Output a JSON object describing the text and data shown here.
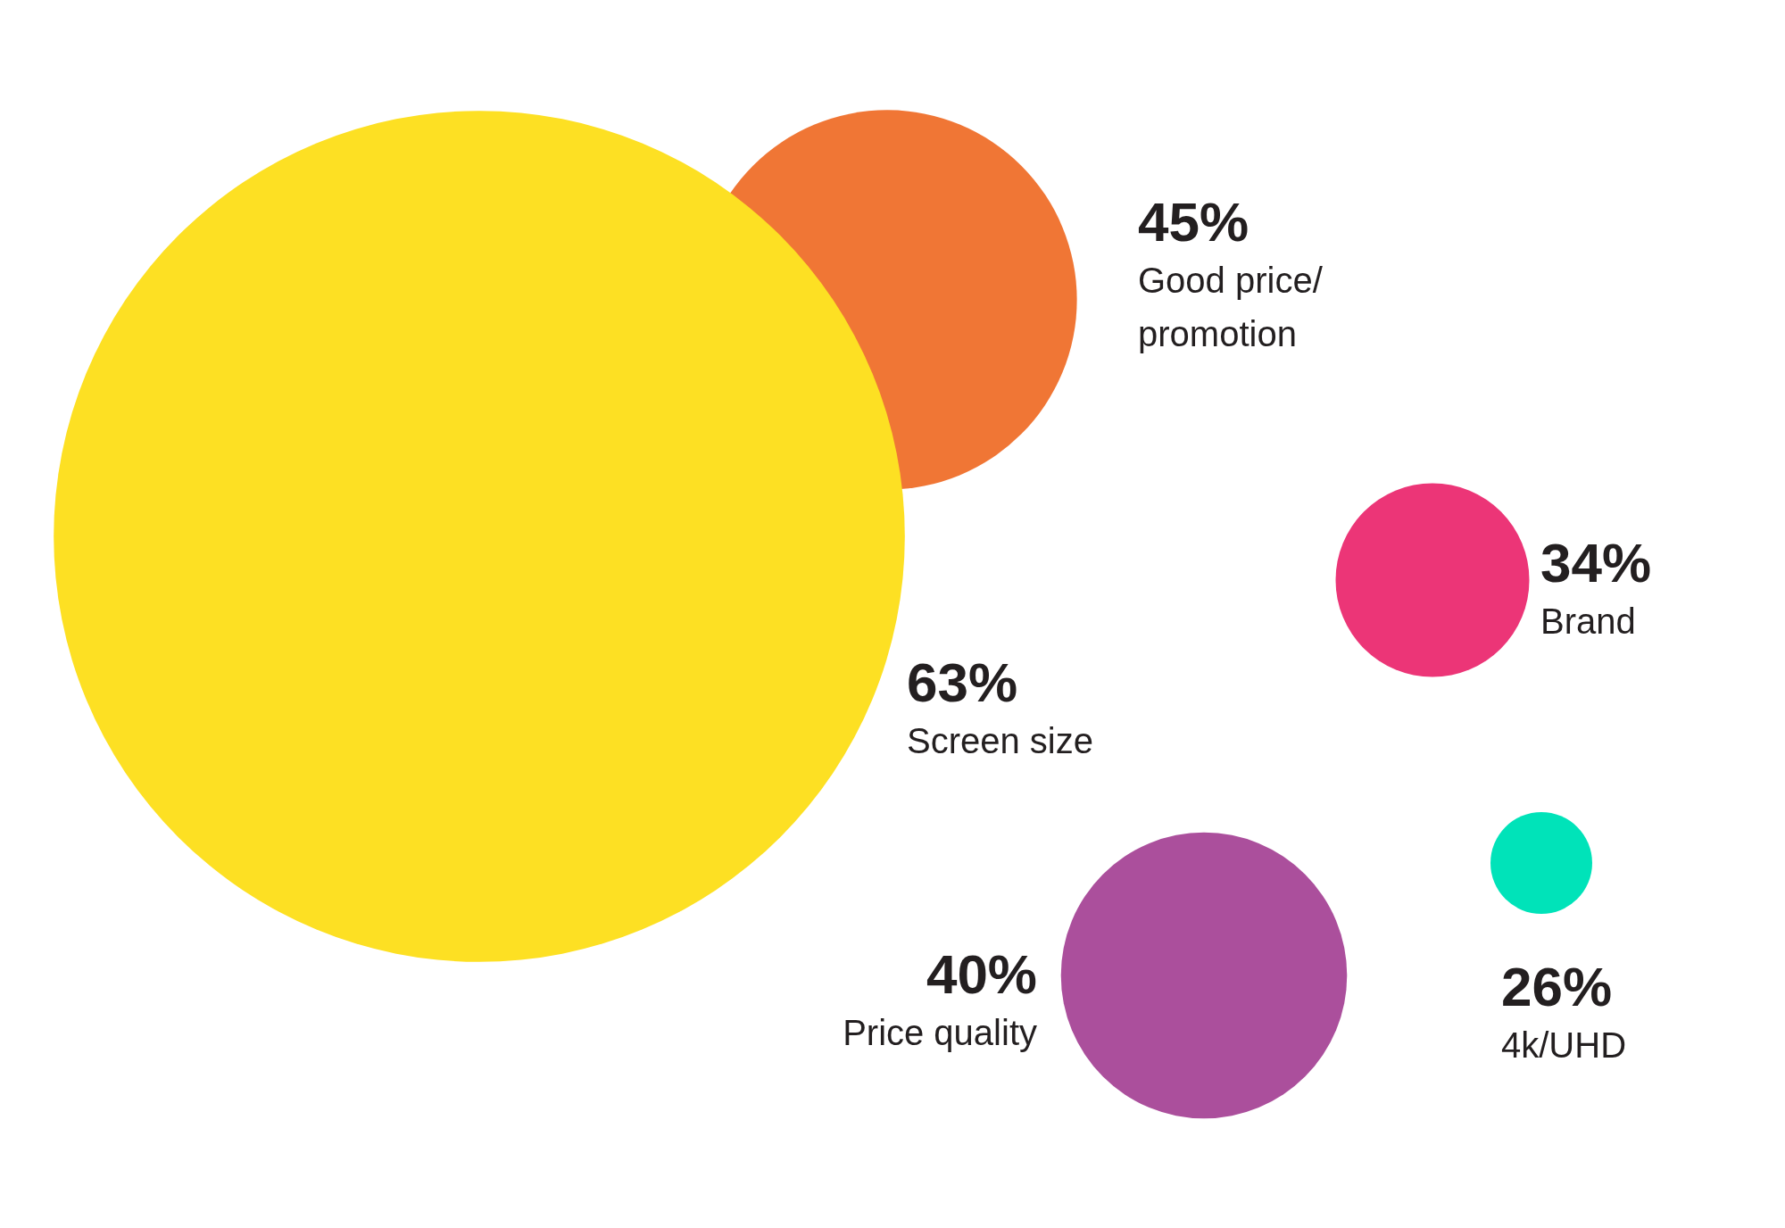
{
  "chart_data": {
    "type": "other",
    "categories": [
      "Screen size",
      "Good price/ promotion",
      "Brand",
      "Price quality",
      "4k/UHD"
    ],
    "values": [
      63,
      45,
      34,
      40,
      26
    ],
    "value_labels": [
      "63%",
      "45%",
      "34%",
      "40%",
      "26%"
    ],
    "colors": [
      "#fde023",
      "#ef6a24",
      "#ec3577",
      "#ab4f9c",
      "#00e3b9"
    ]
  }
}
